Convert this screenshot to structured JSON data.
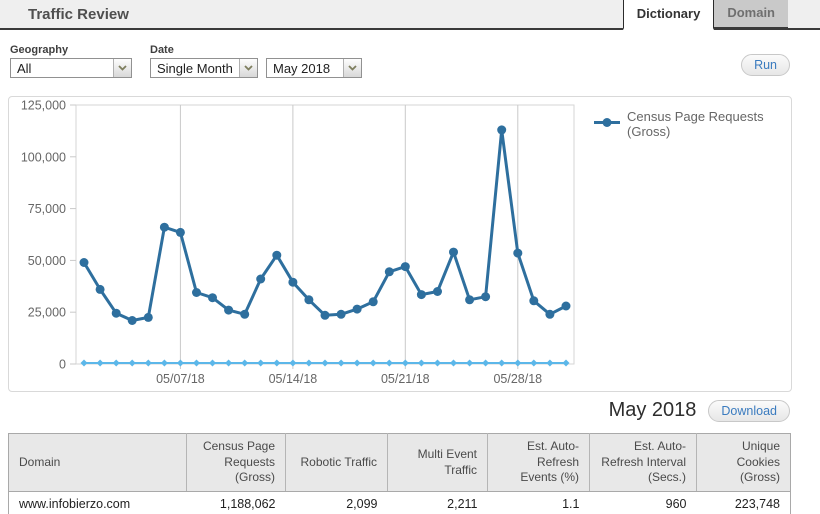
{
  "header": {
    "title": "Traffic Review",
    "tabs": [
      {
        "label": "Dictionary",
        "active": true
      },
      {
        "label": "Domain",
        "active": false
      }
    ]
  },
  "filters": {
    "geography_label": "Geography",
    "geography_value": "All",
    "date_label": "Date",
    "date_mode_value": "Single Month",
    "date_month_value": "May 2018",
    "run_label": "Run"
  },
  "chart_data": {
    "type": "line",
    "title": "",
    "x": [
      "05/01/18",
      "05/02/18",
      "05/03/18",
      "05/04/18",
      "05/05/18",
      "05/06/18",
      "05/07/18",
      "05/08/18",
      "05/09/18",
      "05/10/18",
      "05/11/18",
      "05/12/18",
      "05/13/18",
      "05/14/18",
      "05/15/18",
      "05/16/18",
      "05/17/18",
      "05/18/18",
      "05/19/18",
      "05/20/18",
      "05/21/18",
      "05/22/18",
      "05/23/18",
      "05/24/18",
      "05/25/18",
      "05/26/18",
      "05/27/18",
      "05/28/18",
      "05/29/18",
      "05/30/18",
      "05/31/18"
    ],
    "week_gridlines": [
      6,
      13,
      20,
      27
    ],
    "x_tick_labels": [
      "05/07/18",
      "05/14/18",
      "05/21/18",
      "05/28/18"
    ],
    "series": [
      {
        "name": "Census Page Requests (Gross)",
        "color": "#2e6f9e",
        "marker": "circle",
        "values": [
          49000,
          36000,
          24500,
          21000,
          22500,
          66000,
          63500,
          34500,
          32000,
          26000,
          24000,
          41000,
          52500,
          39500,
          31000,
          23500,
          24000,
          26500,
          30000,
          44500,
          47000,
          33500,
          35000,
          54000,
          31000,
          32500,
          113000,
          53500,
          30500,
          24000,
          28000
        ]
      },
      {
        "name": "",
        "color": "#5cb7e9",
        "marker": "diamond",
        "values": [
          500,
          500,
          500,
          500,
          500,
          500,
          500,
          500,
          500,
          500,
          500,
          500,
          500,
          500,
          500,
          500,
          500,
          500,
          500,
          500,
          500,
          500,
          500,
          500,
          500,
          500,
          500,
          500,
          500,
          500,
          500
        ]
      }
    ],
    "ylim": [
      0,
      125000
    ],
    "y_ticks": [
      0,
      25000,
      50000,
      75000,
      100000,
      125000
    ],
    "legend": {
      "position": "right",
      "entries": [
        "Census Page Requests (Gross)"
      ]
    },
    "grid": "vertical-weekly-only"
  },
  "summary": {
    "period_label": "May 2018",
    "download_label": "Download"
  },
  "table": {
    "columns": [
      "Domain",
      "Census Page Requests (Gross)",
      "Robotic Traffic",
      "Multi Event Traffic",
      "Est. Auto-Refresh Events (%)",
      "Est. Auto-Refresh Interval (Secs.)",
      "Unique Cookies (Gross)"
    ],
    "rows": [
      [
        "www.infobierzo.com",
        "1,188,062",
        "2,099",
        "2,211",
        "1.1",
        "960",
        "223,748"
      ]
    ]
  }
}
